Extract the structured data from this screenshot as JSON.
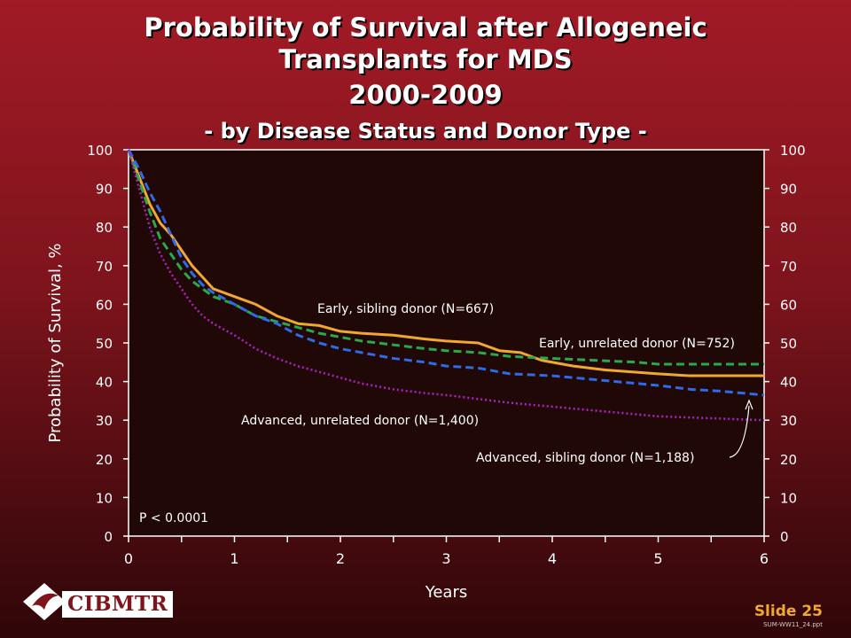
{
  "header": {
    "title_line1": "Probability of Survival after Allogeneic",
    "title_line2": "Transplants for MDS",
    "title_line3": "2000-2009",
    "subtitle": "- by Disease Status and Donor Type -"
  },
  "footer": {
    "logo_text": "CIBMTR",
    "slide_label": "Slide 25",
    "file_name": "SUM-WW11_24.ppt"
  },
  "chart_data": {
    "type": "line",
    "xlabel": "Years",
    "ylabel": "Probability of Survival, %",
    "xlim": [
      0,
      6
    ],
    "ylim": [
      0,
      100
    ],
    "x_ticks": [
      "0",
      "1",
      "2",
      "3",
      "4",
      "5",
      "6"
    ],
    "y_ticks": [
      "0",
      "10",
      "20",
      "30",
      "40",
      "50",
      "60",
      "70",
      "80",
      "90",
      "100"
    ],
    "annotation": "P < 0.0001",
    "series": [
      {
        "name": "Early, sibling donor (N=667)",
        "color": "#f0a830",
        "style": "solid",
        "x": [
          0,
          0.1,
          0.2,
          0.3,
          0.4,
          0.5,
          0.6,
          0.7,
          0.8,
          1.0,
          1.2,
          1.4,
          1.6,
          1.8,
          2.0,
          2.2,
          2.5,
          2.8,
          3.0,
          3.3,
          3.5,
          3.7,
          3.9,
          4.2,
          4.5,
          5.0,
          5.3,
          5.5,
          6.0
        ],
        "y": [
          100,
          93,
          86,
          81,
          78,
          74,
          70,
          67,
          64,
          62,
          60,
          57,
          55,
          54.5,
          53,
          52.5,
          52,
          51,
          50.5,
          50,
          48,
          47.5,
          45.5,
          44,
          43,
          42,
          41.5,
          41.5,
          41.5
        ]
      },
      {
        "name": "Early, unrelated donor (N=752)",
        "color": "#2aa84a",
        "style": "dashed",
        "x": [
          0,
          0.1,
          0.2,
          0.3,
          0.4,
          0.5,
          0.6,
          0.7,
          0.8,
          1.0,
          1.2,
          1.4,
          1.6,
          1.8,
          2.0,
          2.2,
          2.5,
          2.8,
          3.0,
          3.3,
          3.6,
          4.0,
          4.4,
          4.8,
          5.0,
          5.5,
          6.0
        ],
        "y": [
          100,
          92,
          84,
          77,
          73,
          69,
          66,
          64,
          62,
          60,
          57,
          55.5,
          54,
          52.5,
          51.5,
          50.5,
          49.5,
          48.5,
          48,
          47.5,
          46.5,
          46,
          45.5,
          45,
          44.5,
          44.5,
          44.5
        ]
      },
      {
        "name": "Advanced, sibling donor (N=1,188)",
        "color": "#2f6ae8",
        "style": "dashed",
        "x": [
          0,
          0.1,
          0.2,
          0.3,
          0.4,
          0.5,
          0.6,
          0.7,
          0.8,
          1.0,
          1.2,
          1.4,
          1.6,
          1.8,
          2.0,
          2.2,
          2.5,
          2.8,
          3.0,
          3.3,
          3.6,
          4.0,
          4.4,
          4.8,
          5.0,
          5.3,
          5.6,
          6.0
        ],
        "y": [
          100,
          95,
          89,
          84,
          78,
          72,
          68,
          65,
          63,
          60,
          57,
          55,
          52,
          50,
          48.5,
          47.5,
          46,
          45,
          44,
          43.5,
          42,
          41.5,
          40.5,
          39.5,
          39,
          38,
          37.5,
          36.5
        ]
      },
      {
        "name": "Advanced, unrelated donor (N=1,400)",
        "color": "#b020c8",
        "style": "dotted",
        "x": [
          0,
          0.1,
          0.2,
          0.3,
          0.4,
          0.5,
          0.6,
          0.7,
          0.8,
          1.0,
          1.2,
          1.4,
          1.6,
          1.8,
          2.0,
          2.2,
          2.5,
          2.8,
          3.0,
          3.3,
          3.6,
          4.0,
          4.4,
          4.8,
          5.0,
          5.5,
          6.0
        ],
        "y": [
          100,
          90,
          80,
          73,
          68,
          64,
          60,
          57,
          55,
          52,
          48.5,
          46,
          44,
          42.5,
          41,
          39.5,
          38,
          37,
          36.5,
          35.5,
          34.5,
          33.5,
          32.5,
          31.5,
          31,
          30.5,
          30
        ]
      }
    ]
  }
}
